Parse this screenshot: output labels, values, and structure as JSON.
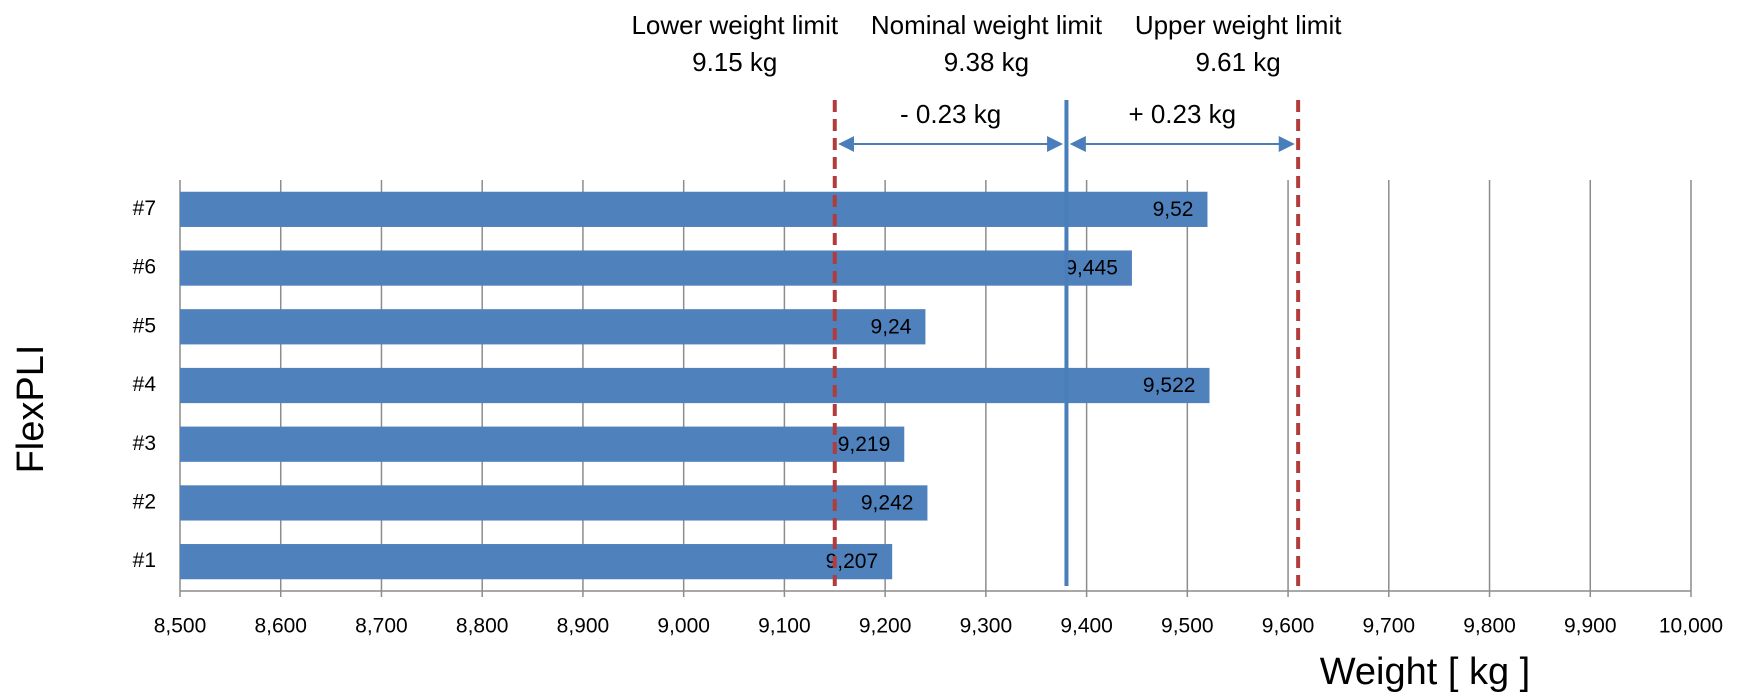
{
  "chart_data": {
    "type": "bar",
    "orientation": "horizontal",
    "categories": [
      "#1",
      "#2",
      "#3",
      "#4",
      "#5",
      "#6",
      "#7"
    ],
    "values": [
      9.207,
      9.242,
      9.219,
      9.522,
      9.24,
      9.445,
      9.52
    ],
    "value_labels": [
      "9,207",
      "9,242",
      "9,219",
      "9,522",
      "9,24",
      "9,445",
      "9,52"
    ],
    "color": "#4f81bd",
    "xlim": [
      8.5,
      10
    ],
    "xticks": [
      {
        "value": 8.5,
        "label": "8,500"
      },
      {
        "value": 8.6,
        "label": "8,600"
      },
      {
        "value": 8.7,
        "label": "8,700"
      },
      {
        "value": 8.8,
        "label": "8,800"
      },
      {
        "value": 8.9,
        "label": "8,900"
      },
      {
        "value": 9,
        "label": "9,000"
      },
      {
        "value": 9.1,
        "label": "9,100"
      },
      {
        "value": 9.2,
        "label": "9,200"
      },
      {
        "value": 9.3,
        "label": "9,300"
      },
      {
        "value": 9.4,
        "label": "9,400"
      },
      {
        "value": 9.5,
        "label": "9,500"
      },
      {
        "value": 9.6,
        "label": "9,600"
      },
      {
        "value": 9.7,
        "label": "9,700"
      },
      {
        "value": 9.8,
        "label": "9,800"
      },
      {
        "value": 9.9,
        "label": "9,900"
      },
      {
        "value": 10,
        "label": "10,000"
      }
    ],
    "grid": true,
    "x_label": "Weight [ kg ]",
    "y_label": "FlexPLI",
    "reference_lines": [
      {
        "name": "Lower weight limit",
        "value": 9.15,
        "label": "9.15 kg",
        "color": "#b23b3b",
        "style": "dashed"
      },
      {
        "name": "Nominal weight limit",
        "value": 9.38,
        "label": "9.38 kg",
        "color": "#4a7ebb",
        "style": "solid"
      },
      {
        "name": "Upper weight limit",
        "value": 9.61,
        "label": "9.61 kg",
        "color": "#b23b3b",
        "style": "dashed"
      }
    ],
    "span_labels": [
      "- 0.23 kg",
      "+ 0.23 kg"
    ],
    "span_color": "#4a7ebb"
  }
}
